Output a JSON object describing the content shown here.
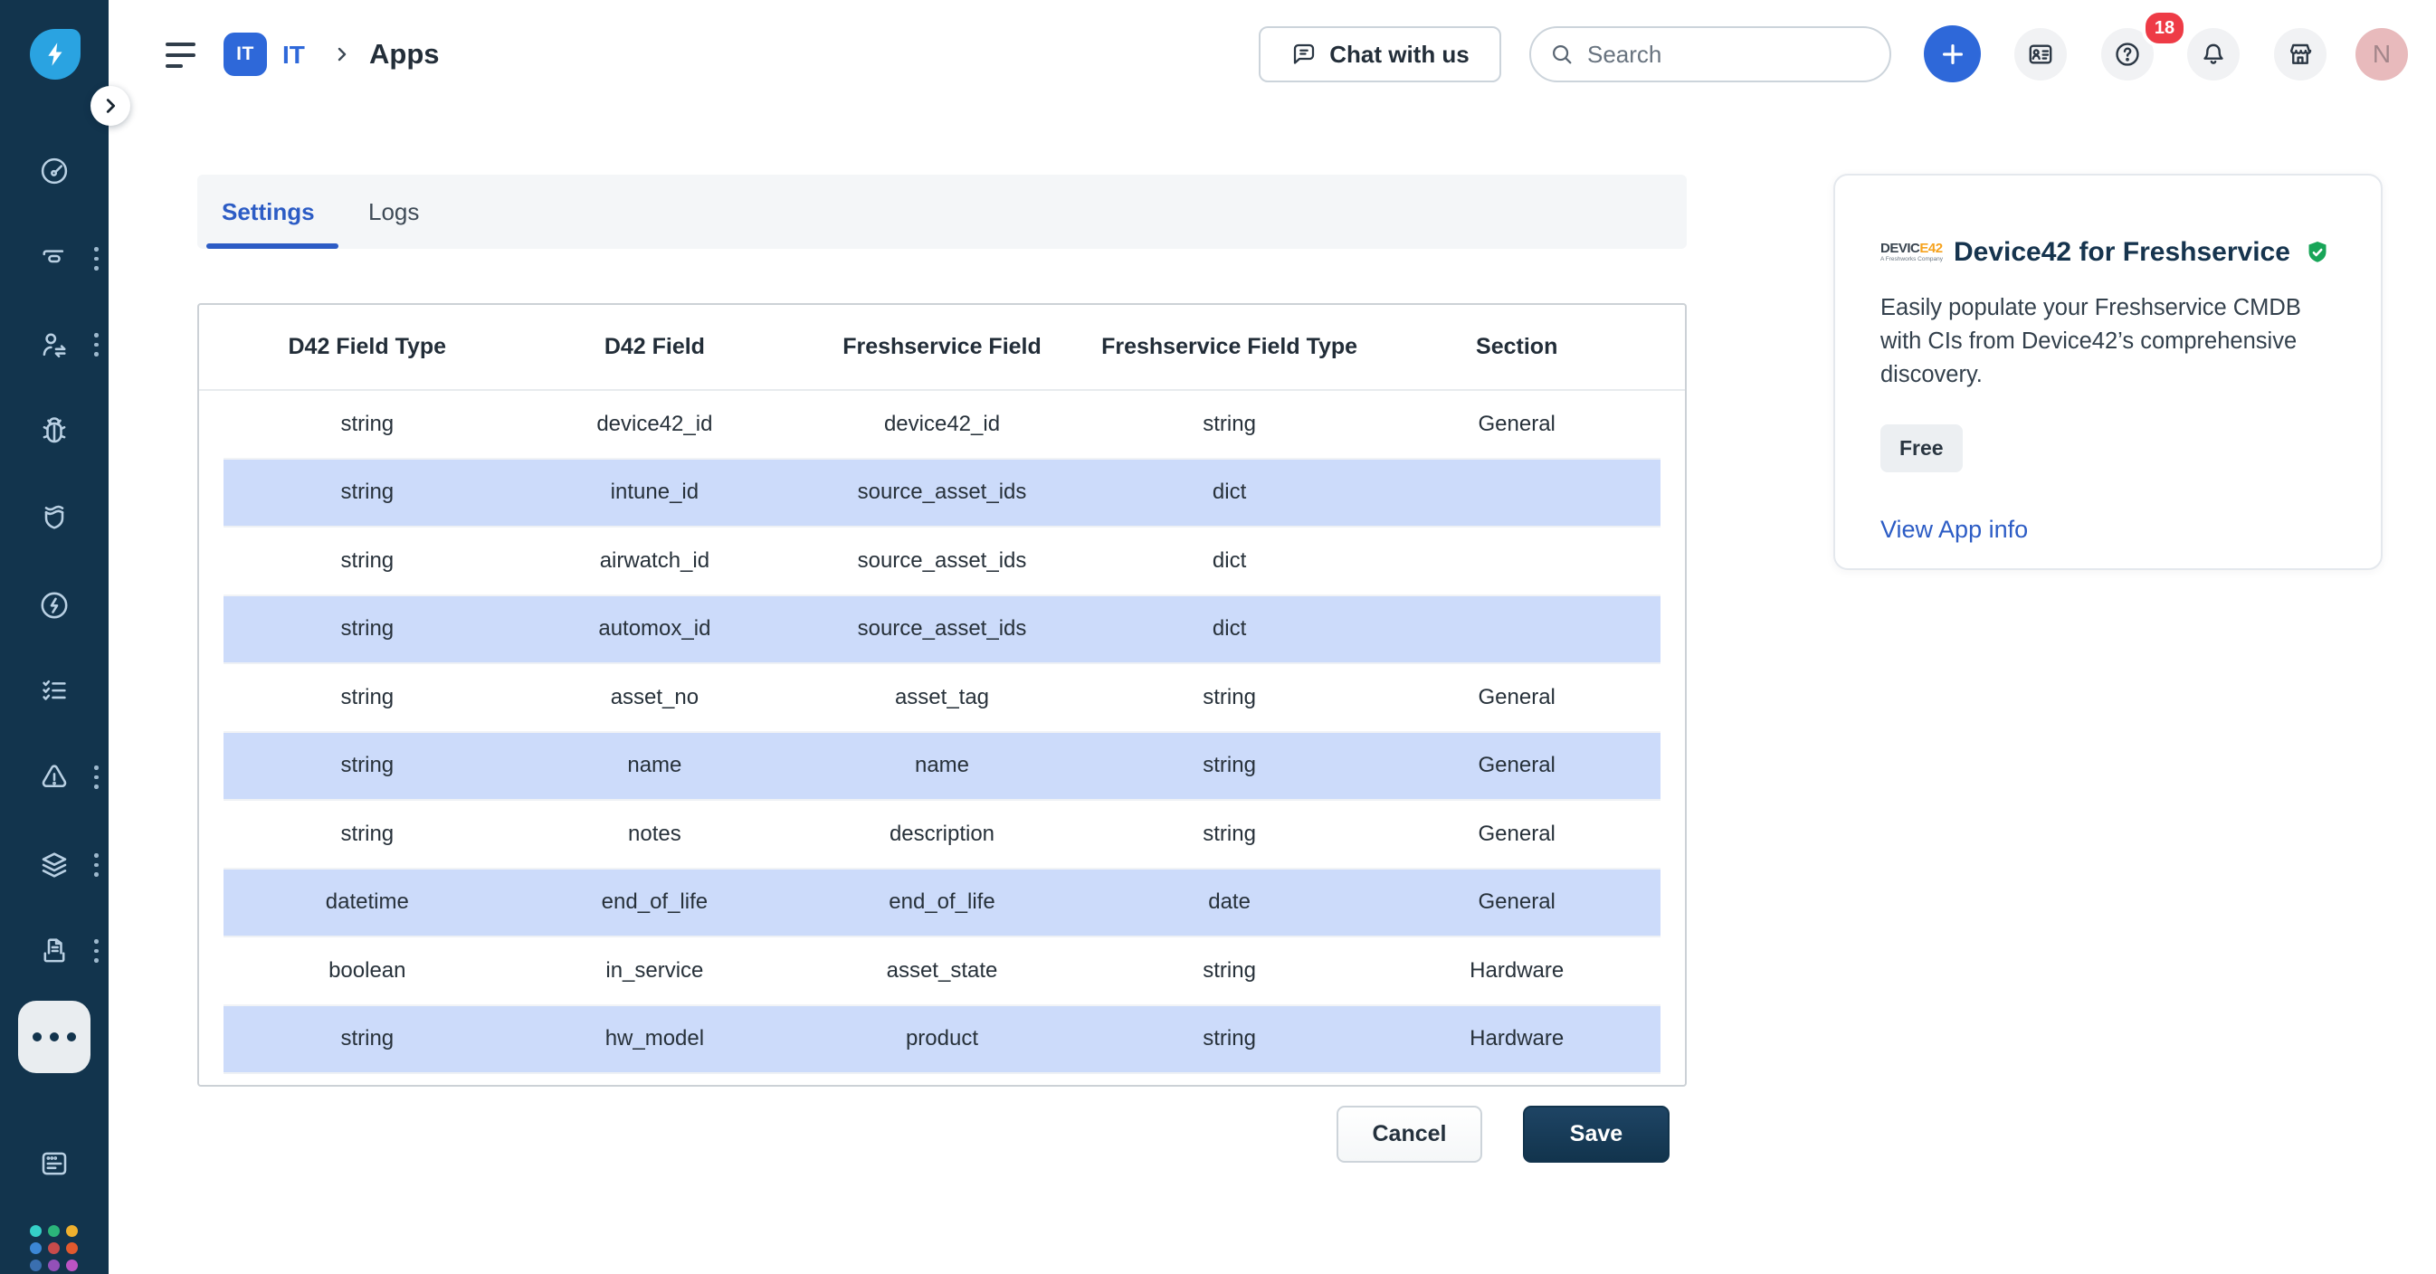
{
  "sidebar": {
    "icons": [
      "freshservice-logo",
      "collapse-chevron",
      "dashboard",
      "tickets",
      "requester-sync",
      "bug",
      "shield-release",
      "lightning-circle",
      "checklist",
      "alert-triangle",
      "layers",
      "document-tray",
      "more-active",
      "browser-window",
      "app-switcher-grid"
    ],
    "items_with_kebab": [
      "tickets",
      "requester-sync",
      "alert-triangle",
      "layers",
      "document-tray"
    ]
  },
  "header": {
    "breadcrumb": {
      "badge": "IT",
      "app": "IT",
      "page": "Apps"
    },
    "chat_label": "Chat with us",
    "search_placeholder": "Search",
    "notification_count": "18",
    "avatar_initial": "N",
    "icons": [
      "hamburger-menu",
      "chat-bubble",
      "search-magnifier",
      "plus",
      "id-card",
      "help-question",
      "bell",
      "storefront"
    ]
  },
  "tabs": [
    {
      "label": "Settings",
      "active": true
    },
    {
      "label": "Logs",
      "active": false
    }
  ],
  "table": {
    "columns": [
      "D42 Field Type",
      "D42 Field",
      "Freshservice Field",
      "Freshservice Field Type",
      "Section"
    ],
    "rows": [
      {
        "cells": [
          "string",
          "device42_id",
          "device42_id",
          "string",
          "General"
        ],
        "highlighted": false
      },
      {
        "cells": [
          "string",
          "intune_id",
          "source_asset_ids",
          "dict",
          ""
        ],
        "highlighted": true
      },
      {
        "cells": [
          "string",
          "airwatch_id",
          "source_asset_ids",
          "dict",
          ""
        ],
        "highlighted": false
      },
      {
        "cells": [
          "string",
          "automox_id",
          "source_asset_ids",
          "dict",
          ""
        ],
        "highlighted": true
      },
      {
        "cells": [
          "string",
          "asset_no",
          "asset_tag",
          "string",
          "General"
        ],
        "highlighted": false
      },
      {
        "cells": [
          "string",
          "name",
          "name",
          "string",
          "General"
        ],
        "highlighted": true
      },
      {
        "cells": [
          "string",
          "notes",
          "description",
          "string",
          "General"
        ],
        "highlighted": false
      },
      {
        "cells": [
          "datetime",
          "end_of_life",
          "end_of_life",
          "date",
          "General"
        ],
        "highlighted": true
      },
      {
        "cells": [
          "boolean",
          "in_service",
          "asset_state",
          "string",
          "Hardware"
        ],
        "highlighted": false
      },
      {
        "cells": [
          "string",
          "hw_model",
          "product",
          "string",
          "Hardware"
        ],
        "highlighted": true
      }
    ]
  },
  "app_card": {
    "logo_text_dark": "DEVIC",
    "logo_text_orange": "E42",
    "logo_tagline": "A Freshworks Company",
    "title": "Device42 for Freshservice",
    "verified_icon": "shield-check-green",
    "description": "Easily populate your Freshservice CMDB with CIs from Device42’s comprehensive discovery.",
    "plan_badge": "Free",
    "link_label": "View App info"
  },
  "actions": {
    "cancel": "Cancel",
    "save": "Save"
  },
  "colors": {
    "sidebar_bg": "#12344d",
    "logo_blue": "#2aa3e1",
    "accent_blue": "#2c5cc5",
    "badge_blue": "#2e68d9",
    "row_highlight": "#ccdbfa",
    "notification_red": "#ee3b46",
    "verified_green": "#18a558",
    "avatar_bg": "#e8babc",
    "save_button_bg": "#12344d",
    "tabbar_bg": "#f4f6f8",
    "free_badge_bg": "#eceff2"
  }
}
